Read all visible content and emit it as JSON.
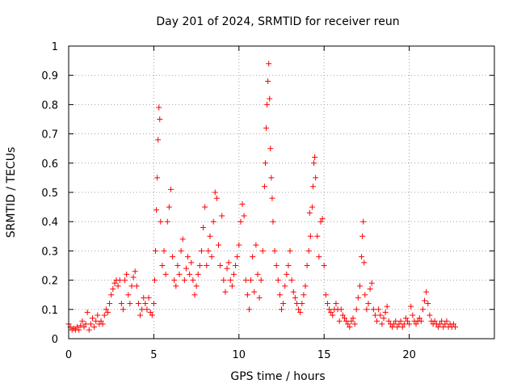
{
  "chart_data": {
    "type": "scatter",
    "title": "Day 201 of 2024, SRMTID for receiver reun",
    "xlabel": "GPS time / hours",
    "ylabel": "SRMTID / TECUs",
    "xlim": [
      0,
      25
    ],
    "ylim": [
      0,
      1
    ],
    "xticks": [
      0,
      5,
      10,
      15,
      20
    ],
    "yticks": [
      0,
      0.1,
      0.2,
      0.3,
      0.4,
      0.5,
      0.6,
      0.7,
      0.8,
      0.9,
      1
    ],
    "xtick_labels": [
      "0",
      "5",
      "10",
      "15",
      "20"
    ],
    "ytick_labels": [
      "0",
      "0.1",
      "0.2",
      "0.3",
      "0.4",
      "0.5",
      "0.6",
      "0.7",
      "0.8",
      "0.9",
      "1"
    ],
    "grid": true,
    "marker": "+",
    "color": "#ff0000",
    "series": [
      {
        "name": "SRMTID",
        "points": [
          [
            0.0,
            0.05
          ],
          [
            0.1,
            0.04
          ],
          [
            0.2,
            0.03
          ],
          [
            0.3,
            0.035
          ],
          [
            0.4,
            0.03
          ],
          [
            0.5,
            0.04
          ],
          [
            0.6,
            0.03
          ],
          [
            0.7,
            0.045
          ],
          [
            0.8,
            0.06
          ],
          [
            0.9,
            0.04
          ],
          [
            1.0,
            0.05
          ],
          [
            1.1,
            0.09
          ],
          [
            1.2,
            0.03
          ],
          [
            1.3,
            0.05
          ],
          [
            1.4,
            0.07
          ],
          [
            1.5,
            0.04
          ],
          [
            1.6,
            0.06
          ],
          [
            1.7,
            0.08
          ],
          [
            1.8,
            0.05
          ],
          [
            1.9,
            0.06
          ],
          [
            2.0,
            0.05
          ],
          [
            2.1,
            0.08
          ],
          [
            2.2,
            0.1
          ],
          [
            2.3,
            0.09
          ],
          [
            2.4,
            0.12
          ],
          [
            2.5,
            0.15
          ],
          [
            2.6,
            0.17
          ],
          [
            2.7,
            0.19
          ],
          [
            2.8,
            0.2
          ],
          [
            2.9,
            0.18
          ],
          [
            3.0,
            0.2
          ],
          [
            3.1,
            0.12
          ],
          [
            3.2,
            0.1
          ],
          [
            3.3,
            0.2
          ],
          [
            3.4,
            0.22
          ],
          [
            3.5,
            0.15
          ],
          [
            3.6,
            0.12
          ],
          [
            3.7,
            0.18
          ],
          [
            3.8,
            0.21
          ],
          [
            3.9,
            0.23
          ],
          [
            4.0,
            0.18
          ],
          [
            4.1,
            0.12
          ],
          [
            4.2,
            0.08
          ],
          [
            4.3,
            0.1
          ],
          [
            4.4,
            0.14
          ],
          [
            4.5,
            0.12
          ],
          [
            4.6,
            0.1
          ],
          [
            4.7,
            0.14
          ],
          [
            4.8,
            0.09
          ],
          [
            4.9,
            0.08
          ],
          [
            5.0,
            0.12
          ],
          [
            5.05,
            0.2
          ],
          [
            5.1,
            0.3
          ],
          [
            5.15,
            0.44
          ],
          [
            5.2,
            0.55
          ],
          [
            5.25,
            0.68
          ],
          [
            5.3,
            0.79
          ],
          [
            5.35,
            0.75
          ],
          [
            5.4,
            0.4
          ],
          [
            5.5,
            0.25
          ],
          [
            5.6,
            0.3
          ],
          [
            5.7,
            0.22
          ],
          [
            5.8,
            0.4
          ],
          [
            5.9,
            0.45
          ],
          [
            6.0,
            0.51
          ],
          [
            6.1,
            0.28
          ],
          [
            6.2,
            0.2
          ],
          [
            6.3,
            0.18
          ],
          [
            6.4,
            0.25
          ],
          [
            6.5,
            0.22
          ],
          [
            6.6,
            0.3
          ],
          [
            6.7,
            0.34
          ],
          [
            6.8,
            0.2
          ],
          [
            6.9,
            0.24
          ],
          [
            7.0,
            0.28
          ],
          [
            7.1,
            0.22
          ],
          [
            7.2,
            0.26
          ],
          [
            7.3,
            0.2
          ],
          [
            7.4,
            0.15
          ],
          [
            7.5,
            0.18
          ],
          [
            7.6,
            0.22
          ],
          [
            7.7,
            0.25
          ],
          [
            7.8,
            0.3
          ],
          [
            7.9,
            0.38
          ],
          [
            8.0,
            0.45
          ],
          [
            8.1,
            0.25
          ],
          [
            8.2,
            0.3
          ],
          [
            8.3,
            0.35
          ],
          [
            8.4,
            0.28
          ],
          [
            8.5,
            0.4
          ],
          [
            8.6,
            0.5
          ],
          [
            8.7,
            0.48
          ],
          [
            8.8,
            0.32
          ],
          [
            8.9,
            0.25
          ],
          [
            9.0,
            0.42
          ],
          [
            9.1,
            0.2
          ],
          [
            9.2,
            0.16
          ],
          [
            9.3,
            0.24
          ],
          [
            9.4,
            0.26
          ],
          [
            9.5,
            0.2
          ],
          [
            9.6,
            0.18
          ],
          [
            9.7,
            0.22
          ],
          [
            9.8,
            0.25
          ],
          [
            9.9,
            0.28
          ],
          [
            10.0,
            0.32
          ],
          [
            10.1,
            0.4
          ],
          [
            10.2,
            0.46
          ],
          [
            10.3,
            0.42
          ],
          [
            10.4,
            0.2
          ],
          [
            10.5,
            0.15
          ],
          [
            10.6,
            0.1
          ],
          [
            10.7,
            0.2
          ],
          [
            10.8,
            0.28
          ],
          [
            10.9,
            0.16
          ],
          [
            11.0,
            0.32
          ],
          [
            11.1,
            0.22
          ],
          [
            11.2,
            0.14
          ],
          [
            11.3,
            0.2
          ],
          [
            11.4,
            0.3
          ],
          [
            11.5,
            0.52
          ],
          [
            11.55,
            0.6
          ],
          [
            11.6,
            0.72
          ],
          [
            11.65,
            0.8
          ],
          [
            11.7,
            0.88
          ],
          [
            11.75,
            0.94
          ],
          [
            11.8,
            0.82
          ],
          [
            11.85,
            0.65
          ],
          [
            11.9,
            0.55
          ],
          [
            11.95,
            0.48
          ],
          [
            12.0,
            0.4
          ],
          [
            12.1,
            0.3
          ],
          [
            12.2,
            0.25
          ],
          [
            12.3,
            0.2
          ],
          [
            12.4,
            0.15
          ],
          [
            12.5,
            0.1
          ],
          [
            12.6,
            0.12
          ],
          [
            12.7,
            0.18
          ],
          [
            12.8,
            0.22
          ],
          [
            12.9,
            0.25
          ],
          [
            13.0,
            0.3
          ],
          [
            13.1,
            0.2
          ],
          [
            13.2,
            0.16
          ],
          [
            13.3,
            0.14
          ],
          [
            13.4,
            0.12
          ],
          [
            13.5,
            0.1
          ],
          [
            13.6,
            0.09
          ],
          [
            13.7,
            0.12
          ],
          [
            13.8,
            0.15
          ],
          [
            13.9,
            0.18
          ],
          [
            14.0,
            0.25
          ],
          [
            14.1,
            0.3
          ],
          [
            14.15,
            0.43
          ],
          [
            14.2,
            0.35
          ],
          [
            14.3,
            0.45
          ],
          [
            14.35,
            0.52
          ],
          [
            14.4,
            0.6
          ],
          [
            14.45,
            0.62
          ],
          [
            14.5,
            0.55
          ],
          [
            14.6,
            0.35
          ],
          [
            14.7,
            0.28
          ],
          [
            14.8,
            0.4
          ],
          [
            14.9,
            0.41
          ],
          [
            15.0,
            0.25
          ],
          [
            15.1,
            0.15
          ],
          [
            15.2,
            0.12
          ],
          [
            15.3,
            0.1
          ],
          [
            15.4,
            0.09
          ],
          [
            15.5,
            0.08
          ],
          [
            15.6,
            0.1
          ],
          [
            15.7,
            0.12
          ],
          [
            15.8,
            0.1
          ],
          [
            15.9,
            0.06
          ],
          [
            16.0,
            0.1
          ],
          [
            16.1,
            0.08
          ],
          [
            16.2,
            0.07
          ],
          [
            16.3,
            0.06
          ],
          [
            16.4,
            0.05
          ],
          [
            16.5,
            0.04
          ],
          [
            16.6,
            0.06
          ],
          [
            16.7,
            0.07
          ],
          [
            16.8,
            0.05
          ],
          [
            16.9,
            0.1
          ],
          [
            17.0,
            0.14
          ],
          [
            17.1,
            0.18
          ],
          [
            17.2,
            0.28
          ],
          [
            17.25,
            0.35
          ],
          [
            17.3,
            0.4
          ],
          [
            17.35,
            0.26
          ],
          [
            17.4,
            0.15
          ],
          [
            17.5,
            0.1
          ],
          [
            17.6,
            0.12
          ],
          [
            17.7,
            0.17
          ],
          [
            17.8,
            0.19
          ],
          [
            17.9,
            0.1
          ],
          [
            18.0,
            0.08
          ],
          [
            18.1,
            0.06
          ],
          [
            18.2,
            0.1
          ],
          [
            18.3,
            0.08
          ],
          [
            18.4,
            0.05
          ],
          [
            18.5,
            0.07
          ],
          [
            18.6,
            0.09
          ],
          [
            18.7,
            0.11
          ],
          [
            18.8,
            0.06
          ],
          [
            18.9,
            0.05
          ],
          [
            19.0,
            0.04
          ],
          [
            19.1,
            0.05
          ],
          [
            19.2,
            0.06
          ],
          [
            19.3,
            0.04
          ],
          [
            19.4,
            0.05
          ],
          [
            19.5,
            0.06
          ],
          [
            19.6,
            0.04
          ],
          [
            19.7,
            0.05
          ],
          [
            19.8,
            0.07
          ],
          [
            19.9,
            0.06
          ],
          [
            20.0,
            0.05
          ],
          [
            20.1,
            0.11
          ],
          [
            20.2,
            0.08
          ],
          [
            20.3,
            0.06
          ],
          [
            20.4,
            0.05
          ],
          [
            20.5,
            0.06
          ],
          [
            20.6,
            0.07
          ],
          [
            20.7,
            0.06
          ],
          [
            20.8,
            0.1
          ],
          [
            20.9,
            0.13
          ],
          [
            21.0,
            0.16
          ],
          [
            21.1,
            0.12
          ],
          [
            21.2,
            0.08
          ],
          [
            21.3,
            0.06
          ],
          [
            21.4,
            0.05
          ],
          [
            21.5,
            0.06
          ],
          [
            21.6,
            0.05
          ],
          [
            21.7,
            0.04
          ],
          [
            21.8,
            0.05
          ],
          [
            21.9,
            0.06
          ],
          [
            22.0,
            0.04
          ],
          [
            22.1,
            0.05
          ],
          [
            22.2,
            0.06
          ],
          [
            22.3,
            0.04
          ],
          [
            22.4,
            0.05
          ],
          [
            22.5,
            0.04
          ],
          [
            22.6,
            0.05
          ],
          [
            22.7,
            0.04
          ]
        ]
      }
    ]
  }
}
